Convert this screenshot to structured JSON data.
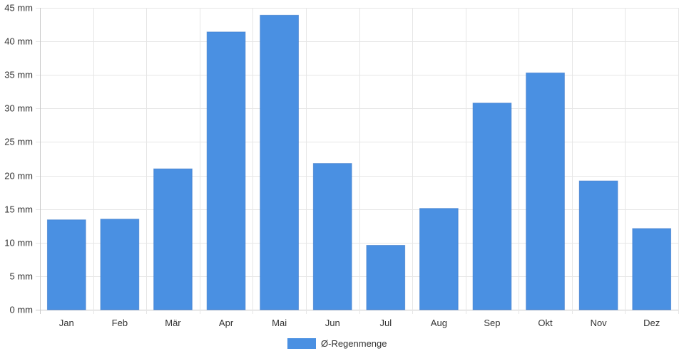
{
  "chart_data": {
    "type": "bar",
    "categories": [
      "Jan",
      "Feb",
      "Mär",
      "Apr",
      "Mai",
      "Jun",
      "Jul",
      "Aug",
      "Sep",
      "Okt",
      "Nov",
      "Dez"
    ],
    "series": [
      {
        "name": "Ø-Regenmenge",
        "values": [
          13.4,
          13.5,
          21.0,
          41.4,
          43.9,
          21.8,
          9.6,
          15.1,
          30.8,
          35.3,
          19.2,
          12.1
        ],
        "color": "#4a90e2"
      }
    ],
    "y_ticks": [
      "0 mm",
      "5 mm",
      "10 mm",
      "15 mm",
      "20 mm",
      "25 mm",
      "30 mm",
      "35 mm",
      "40 mm",
      "45 mm"
    ],
    "ylim": [
      0,
      45
    ],
    "grid": true,
    "legend_position": "bottom"
  }
}
